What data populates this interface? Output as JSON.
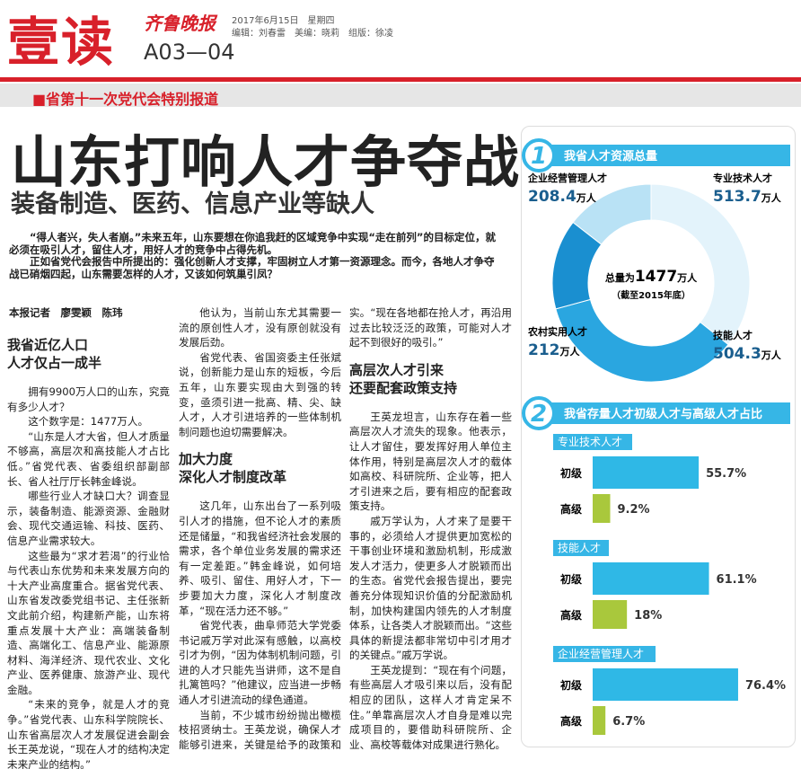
{
  "masthead": {
    "section": "壹读",
    "paper": "齐鲁晚报",
    "date": "2017年6月15日　星期四",
    "editors": "编辑：刘春雷　美编：晓莉　组版：徐凌",
    "page": "A03—04"
  },
  "banner": "■省第十一次党代会特别报道",
  "headline": "山东打响人才争夺战",
  "subheadline": "装备制造、医药、信息产业等缺人",
  "lead": [
    "“得人者兴，失人者崩。”未来五年，山东要想在你追我赶的区域竞争中实现“走在前列”的目标定位，就必须在吸引人才，留住人才，用好人才的竞争中占得先机。",
    "正如省党代会报告中所提出的：强化创新人才支撑，牢固树立人才第一资源理念。而今，各地人才争夺战已硝烟四起，山东需要怎样的人才，又该如何筑巢引凤？"
  ],
  "byline": "本报记者　廖雯颖　陈玮",
  "columns": [
    [
      {
        "type": "h",
        "lines": [
          "我省近亿人口",
          "人才仅占一成半"
        ]
      },
      {
        "type": "p",
        "text": "拥有9900万人口的山东，究竟有多少人才？"
      },
      {
        "type": "p",
        "text": "这个数字是：1477万人。"
      },
      {
        "type": "p",
        "text": "“山东是人才大省，但人才质量不够高，高层次和高技能人才占比低。”省党代表、省委组织部副部长、省人社厅厅长韩金峰说。"
      },
      {
        "type": "p",
        "text": "哪些行业人才缺口大？调查显示，装备制造、能源资源、金融财会、现代交通运输、科技、医药、信息产业需求较大。"
      },
      {
        "type": "p",
        "text": "这些最为“求才若渴”的行业恰与代表山东优势和未来发展方向的十大产业高度重合。据省党代表、山东省发改委党组书记、主任张新文此前介绍，构建新产能，山东将重点发展十大产业：高端装备制造、高端化工、信息产业、能源原材料、海洋经济、现代农业、文化产业、医养健康、旅游产业、现代金融。"
      },
      {
        "type": "p",
        "text": "“未来的竞争，就是人才的竞争。”省党代表、山东科学院院长、山东省高层次人才发展促进会副会长王英龙说，“现在人才的结构决定未来产业的结构。”"
      }
    ],
    [
      {
        "type": "p",
        "text": "他认为，当前山东尤其需要一流的原创性人才，没有原创就没有发展后劲。"
      },
      {
        "type": "p",
        "text": "省党代表、省国资委主任张斌说，创新能力是山东的短板，今后五年，山东要实现由大到强的转变，亟须引进一批高、精、尖、缺人才，人才引进培养的一些体制机制问题也迫切需要解决。"
      },
      {
        "type": "h",
        "lines": [
          "加大力度",
          "深化人才制度改革"
        ]
      },
      {
        "type": "p",
        "text": "这几年，山东出台了一系列吸引人才的措施，但不论人才的素质还是储量，“和我省经济社会发展的需求，各个单位业务发展的需求还有一定差距。”韩金峰说，如何培养、吸引、留住、用好人才，下一步要加大力度，深化人才制度改革，“现在活力还不够。”"
      },
      {
        "type": "p",
        "text": "省党代表，曲阜师范大学党委书记戚万学对此深有感触，以高校引才为例，“因为体制机制问题，引进的人才只能先当讲师，这不是自扎篱笆吗？”他建议，应当进一步畅通人才引进流动的绿色通道。"
      },
      {
        "type": "p",
        "text": "当前，不少城市纷纷抛出橄榄枝招贤纳士。王英龙说，确保人才能够引进来，关键是给予的政策和支持要实在，具体，容易落"
      }
    ],
    [
      {
        "type": "c",
        "text": "实。“现在各地都在抢人才，再沿用过去比较泛泛的政策，可能对人才起不到很好的吸引。”"
      },
      {
        "type": "h",
        "lines": [
          "高层次人才引来",
          "还要配套政策支持"
        ]
      },
      {
        "type": "p",
        "text": "王英龙坦言，山东存在着一些高层次人才流失的现象。他表示，让人才留住，要发挥好用人单位主体作用，特别是高层次人才的载体如高校、科研院所、企业等，把人才引进来之后，要有相应的配套政策支持。"
      },
      {
        "type": "p",
        "text": "戚万学认为，人才来了是要干事的，必须给人才提供更加宽松的干事创业环境和激励机制，形成激发人才活力，使更多人才脱颖而出的生态。省党代会报告提出，要完善充分体现知识价值的分配激励机制，加快构建国内领先的人才制度体系，让各类人才脱颖而出。“这些具体的新提法都非常切中引才用才的关键点。”戚万学说。"
      },
      {
        "type": "p",
        "text": "王英龙提到：“现在有个问题，有些高层人才吸引来以后，没有配相应的团队，这样人才肯定呆不住。”单靠高层次人才自身是难以完成项目的，要借助科研院所、企业、高校等载体对成果进行熟化。"
      }
    ]
  ],
  "infographic": {
    "panel1": {
      "number": "1",
      "title": "我省人才资源总量",
      "total_prefix": "总量为",
      "total": 1477,
      "total_unit": "万人",
      "total_note": "（截至2015年底）",
      "segments": [
        {
          "name": "专业技术人才",
          "value": 513.7,
          "unit": "万人",
          "color": "#e3f3fb"
        },
        {
          "name": "技能人才",
          "value": 504.3,
          "unit": "万人",
          "color": "#2aa6e0"
        },
        {
          "name": "农村实用人才",
          "value": 212,
          "unit": "万人",
          "color": "#1a8fd0"
        },
        {
          "name": "企业经营管理人才",
          "value": 208.4,
          "unit": "万人",
          "color": "#b9e2f5"
        }
      ]
    },
    "panel2": {
      "number": "2",
      "title": "我省存量人才初级人才与高级人才占比",
      "groups": [
        {
          "name": "专业技术人才",
          "labels": [
            "初级",
            "高级"
          ],
          "values": [
            55.7,
            9.2
          ],
          "value_labels": [
            "55.7%",
            "9.2%"
          ]
        },
        {
          "name": "技能人才",
          "labels": [
            "初级",
            "高级"
          ],
          "values": [
            61.1,
            18
          ],
          "value_labels": [
            "61.1%",
            "18%"
          ]
        },
        {
          "name": "企业经营管理人才",
          "labels": [
            "初级",
            "高级"
          ],
          "values": [
            76.4,
            6.7
          ],
          "value_labels": [
            "76.4%",
            "6.7%"
          ]
        }
      ],
      "colors": [
        "#2fb8e6",
        "#a9c83c"
      ]
    }
  }
}
